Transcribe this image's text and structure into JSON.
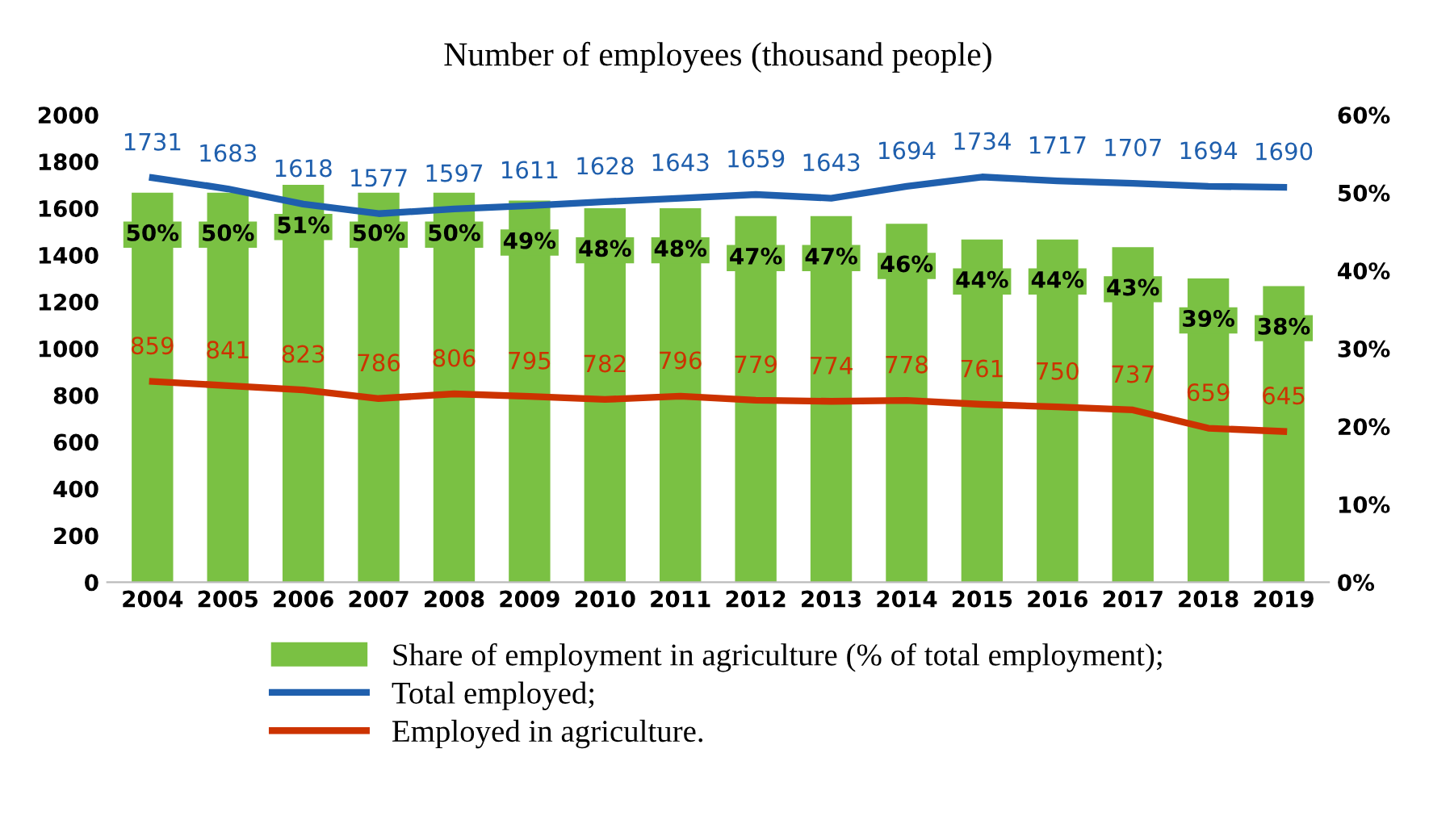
{
  "chart_data": {
    "type": "bar",
    "title": "Number of employees (thousand people)",
    "categories": [
      "2004",
      "2005",
      "2006",
      "2007",
      "2008",
      "2009",
      "2010",
      "2011",
      "2012",
      "2013",
      "2014",
      "2015",
      "2016",
      "2017",
      "2018",
      "2019"
    ],
    "series": [
      {
        "axis": "y2",
        "name": "Share of employment in agriculture (% of total employment);",
        "color": "#7ac143",
        "values": [
          50,
          50,
          51,
          50,
          50,
          49,
          48,
          48,
          47,
          47,
          46,
          44,
          44,
          43,
          39,
          38
        ],
        "value_labels": [
          "50%",
          "50%",
          "51%",
          "50%",
          "50%",
          "49%",
          "48%",
          "48%",
          "47%",
          "47%",
          "46%",
          "44%",
          "44%",
          "43%",
          "39%",
          "38%"
        ]
      },
      {
        "type": "line",
        "axis": "y",
        "name": "Total employed;",
        "color": "#1f5fad",
        "values": [
          1731,
          1683,
          1618,
          1577,
          1597,
          1611,
          1628,
          1643,
          1659,
          1643,
          1694,
          1734,
          1717,
          1707,
          1694,
          1690
        ],
        "data_labels": true
      },
      {
        "type": "line",
        "axis": "y",
        "name": "Employed in agriculture.",
        "color": "#cc3300",
        "values": [
          859,
          841,
          823,
          786,
          806,
          795,
          782,
          796,
          779,
          774,
          778,
          761,
          750,
          737,
          659,
          645
        ],
        "data_labels": true
      }
    ],
    "ylim": [
      0,
      2000
    ],
    "yticks": [
      0,
      200,
      400,
      600,
      800,
      1000,
      1200,
      1400,
      1600,
      1800,
      2000
    ],
    "y2lim": [
      0,
      60
    ],
    "y2ticks": [
      {
        "value": 0,
        "label": "0%"
      },
      {
        "value": 10,
        "label": "10%"
      },
      {
        "value": 20,
        "label": "20%"
      },
      {
        "value": 30,
        "label": "30%"
      },
      {
        "value": 40,
        "label": "40%"
      },
      {
        "value": 50,
        "label": "50%"
      },
      {
        "value": 60,
        "label": "60%"
      }
    ],
    "legend": "bottom",
    "line_style": "solid",
    "marker": "none"
  }
}
